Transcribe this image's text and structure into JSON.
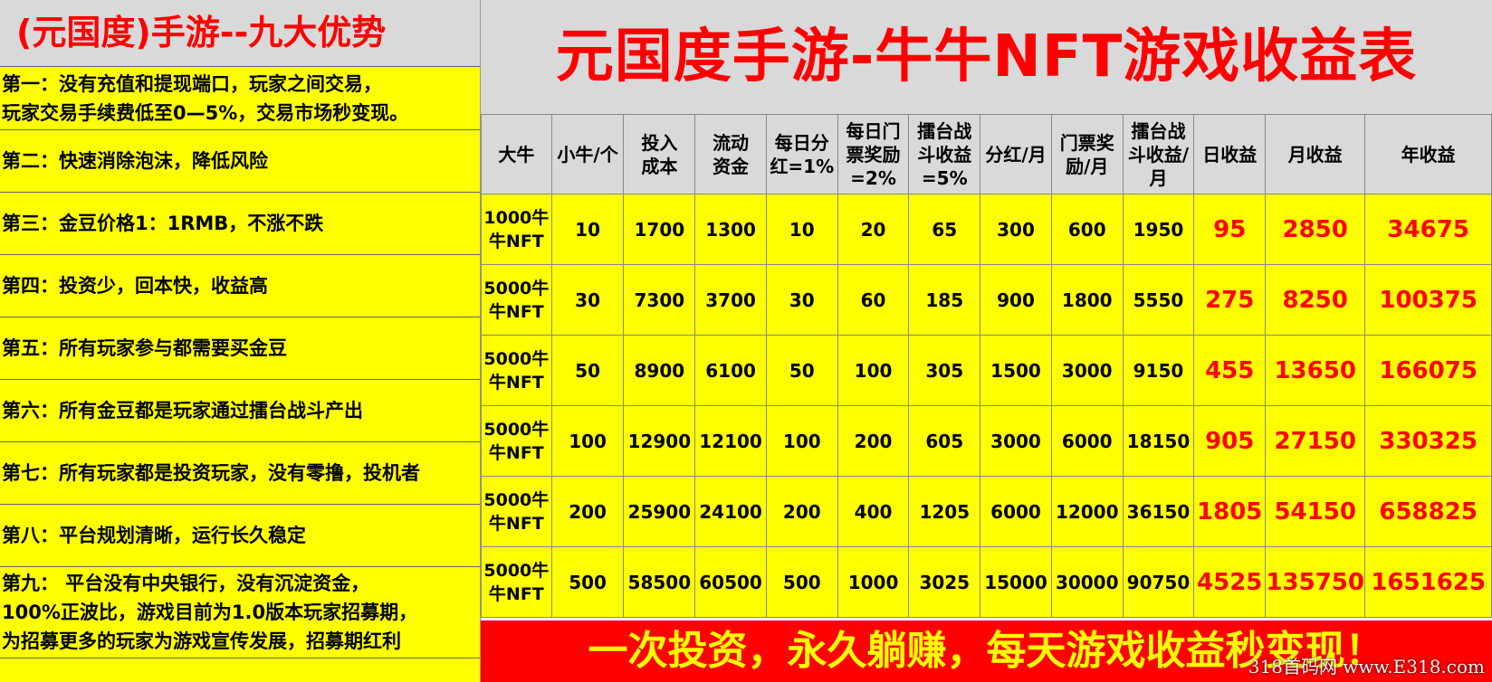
{
  "left": {
    "title": "(元国度)手游--九大优势",
    "items": [
      {
        "lines": [
          "第一：没有充值和提现端口，玩家之间交易，",
          "玩家交易手续费低至0—5%，交易市场秒变现。"
        ]
      },
      {
        "lines": [
          "第二：快速消除泡沫，降低风险"
        ]
      },
      {
        "lines": [
          "第三：金豆价格1：1RMB，不涨不跌"
        ]
      },
      {
        "lines": [
          "第四：投资少，回本快，收益高"
        ]
      },
      {
        "lines": [
          "第五：所有玩家参与都需要买金豆"
        ]
      },
      {
        "lines": [
          "第六：所有金豆都是玩家通过擂台战斗产出"
        ]
      },
      {
        "lines": [
          "第七：所有玩家都是投资玩家，没有零撸，投机者"
        ]
      },
      {
        "lines": [
          "第八：平台规划清晰，运行长久稳定"
        ]
      },
      {
        "lines": [
          "第九： 平台没有中央银行，没有沉淀资金，",
          "100%正波比，游戏目前为1.0版本玩家招募期，",
          "为招募更多的玩家为游戏宣传发展，招募期红利"
        ]
      }
    ]
  },
  "main": {
    "title": "元国度手游-牛牛NFT游戏收益表",
    "headers": [
      "大牛",
      "小牛/个",
      "投入\n成本",
      "流动\n资金",
      "每日分\n红=1%",
      "每日门\n票奖励\n=2%",
      "擂台战\n斗收益\n=5%",
      "分红/月",
      "门票奖\n励/月",
      "擂台战\n斗收益/\n月",
      "日收益",
      "月收益",
      "年收益"
    ],
    "rows": [
      [
        "1000牛\n牛NFT",
        "10",
        "1700",
        "1300",
        "10",
        "20",
        "65",
        "300",
        "600",
        "1950",
        "95",
        "2850",
        "34675"
      ],
      [
        "5000牛\n牛NFT",
        "30",
        "7300",
        "3700",
        "30",
        "60",
        "185",
        "900",
        "1800",
        "5550",
        "275",
        "8250",
        "100375"
      ],
      [
        "5000牛\n牛NFT",
        "50",
        "8900",
        "6100",
        "50",
        "100",
        "305",
        "1500",
        "3000",
        "9150",
        "455",
        "13650",
        "166075"
      ],
      [
        "5000牛\n牛NFT",
        "100",
        "12900",
        "12100",
        "100",
        "200",
        "605",
        "3000",
        "6000",
        "18150",
        "905",
        "27150",
        "330325"
      ],
      [
        "5000牛\n牛NFT",
        "200",
        "25900",
        "24100",
        "200",
        "400",
        "1205",
        "6000",
        "12000",
        "36150",
        "1805",
        "54150",
        "658825"
      ],
      [
        "5000牛\n牛NFT",
        "500",
        "58500",
        "60500",
        "500",
        "1000",
        "3025",
        "15000",
        "30000",
        "90750",
        "4525",
        "135750",
        "1651625"
      ]
    ],
    "banner": "一次投资，永久躺赚，每天游戏收益秒变现！",
    "watermark": "318首码网 www.E318.com"
  },
  "colors": {
    "yellow": "#ffff00",
    "red": "#ff0000",
    "gray": "#d9d9d9"
  }
}
